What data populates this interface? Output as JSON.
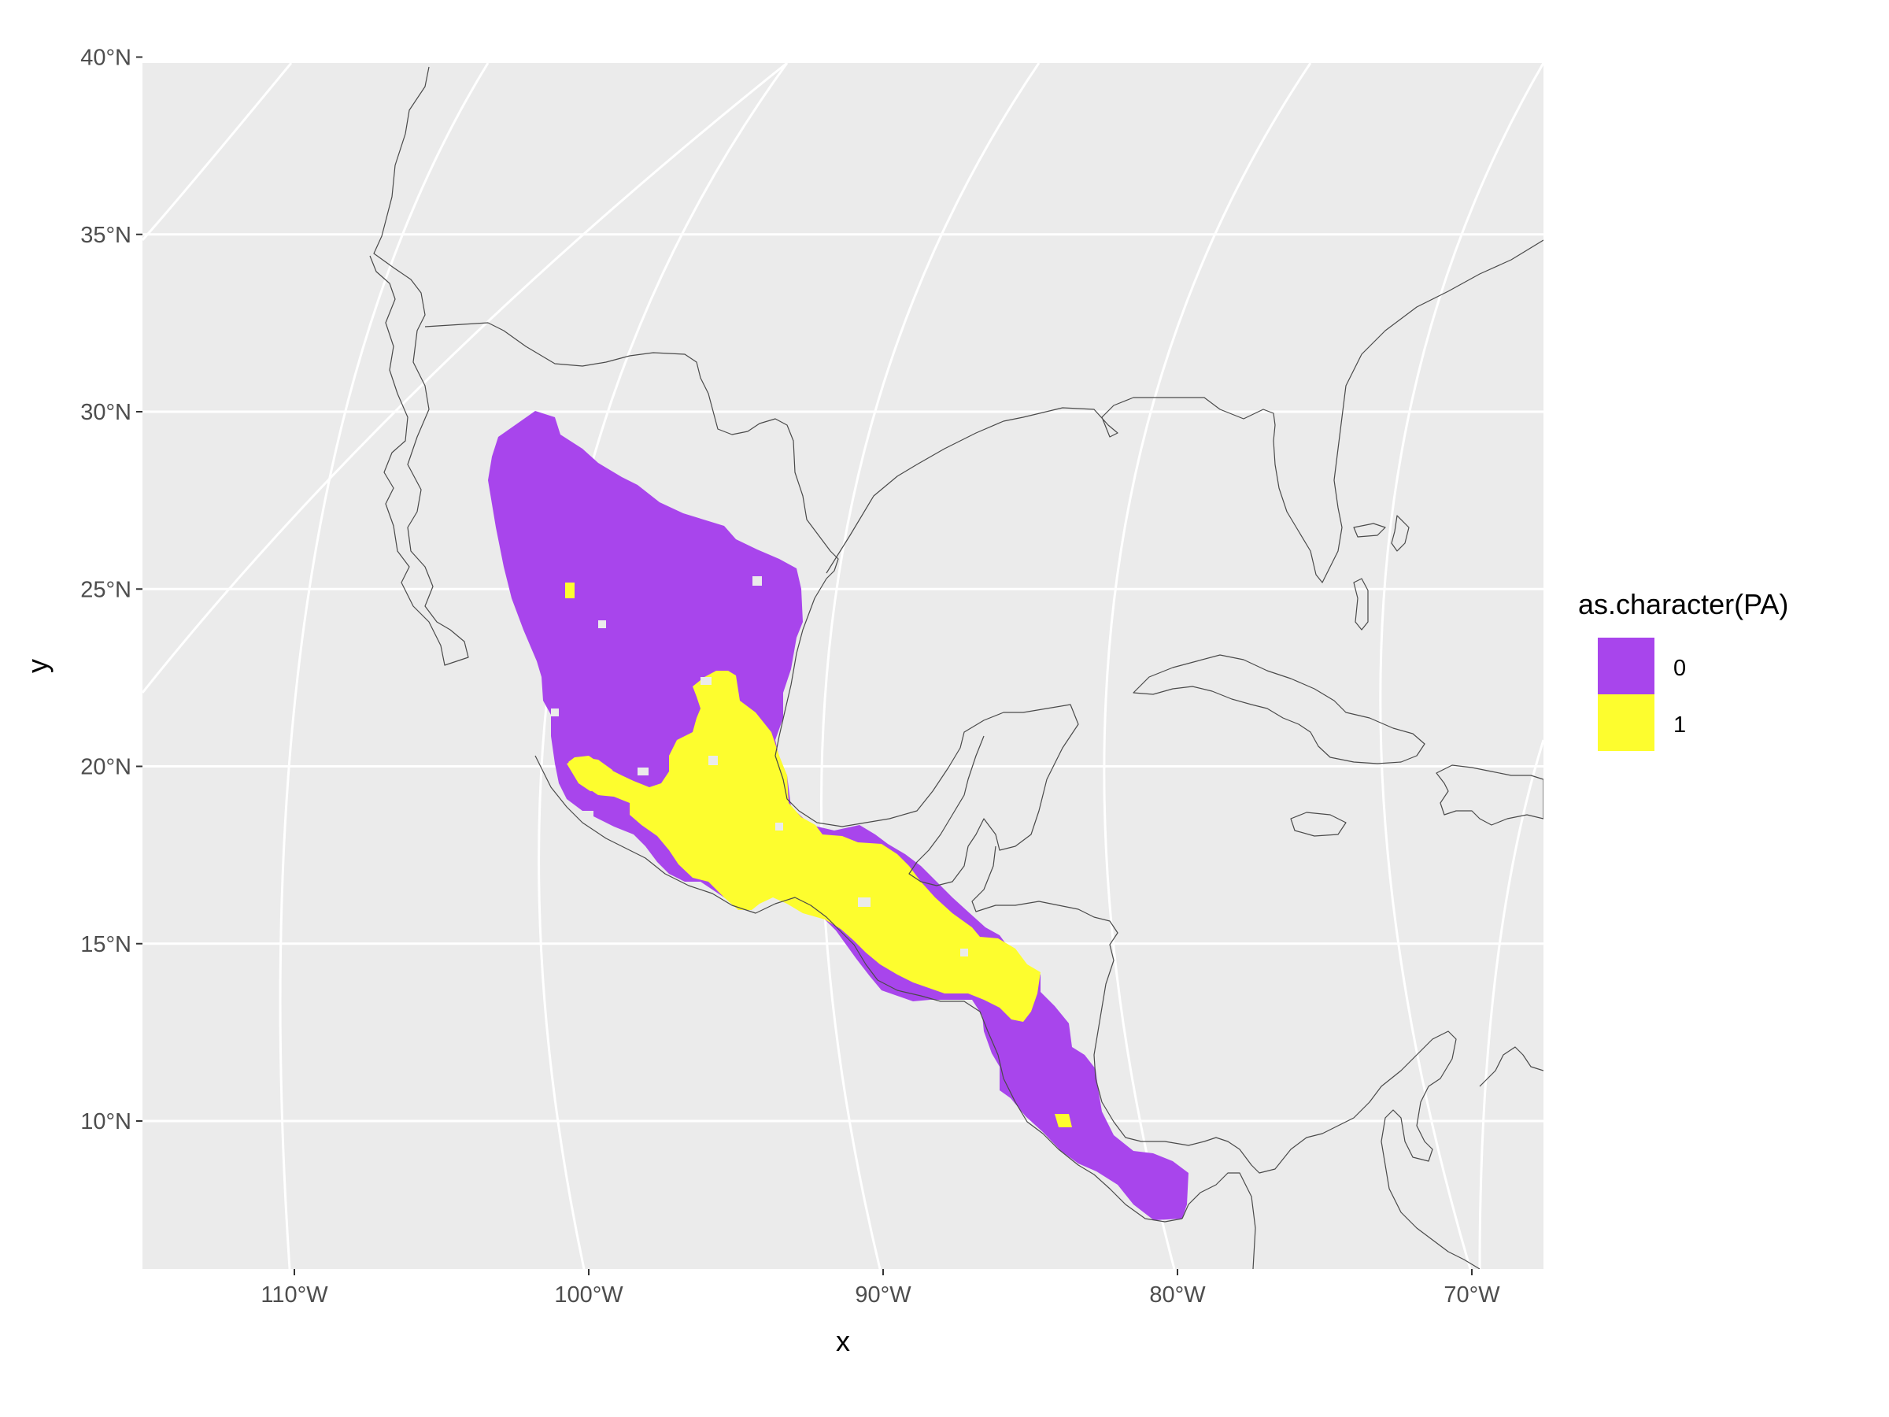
{
  "chart_data": {
    "type": "map",
    "projection": "Lambert azimuthal / conic (curved graticule)",
    "xlabel": "x",
    "ylabel": "y",
    "x_ticks": [
      "110°W",
      "100°W",
      "90°W",
      "80°W",
      "70°W"
    ],
    "x_tick_values": [
      -110,
      -100,
      -90,
      -80,
      -70
    ],
    "y_ticks": [
      "10°N",
      "15°N",
      "20°N",
      "25°N",
      "30°N",
      "35°N",
      "40°N"
    ],
    "y_tick_values": [
      10,
      15,
      20,
      25,
      30,
      35,
      40
    ],
    "xlim_lon": [
      -115,
      -67
    ],
    "ylim_lat": [
      6,
      40.3
    ],
    "legend": {
      "title": "as.character(PA)",
      "placement": "right",
      "entries": [
        {
          "label": "0",
          "color": "#a845ec"
        },
        {
          "label": "1",
          "color": "#fdfd2e"
        }
      ]
    },
    "panel_background": "#ebebeb",
    "grid_color": "#ffffff",
    "coastline_color": "#4a4a4a",
    "regions": {
      "absence_0": "Mexican highlands and Central America, ~29.8°N to ~7.5°N",
      "presence_1": "Central-southern Mexico (Veracruz/Puebla/Oaxaca), Chiapas-Guatemala highlands, Honduras"
    }
  }
}
